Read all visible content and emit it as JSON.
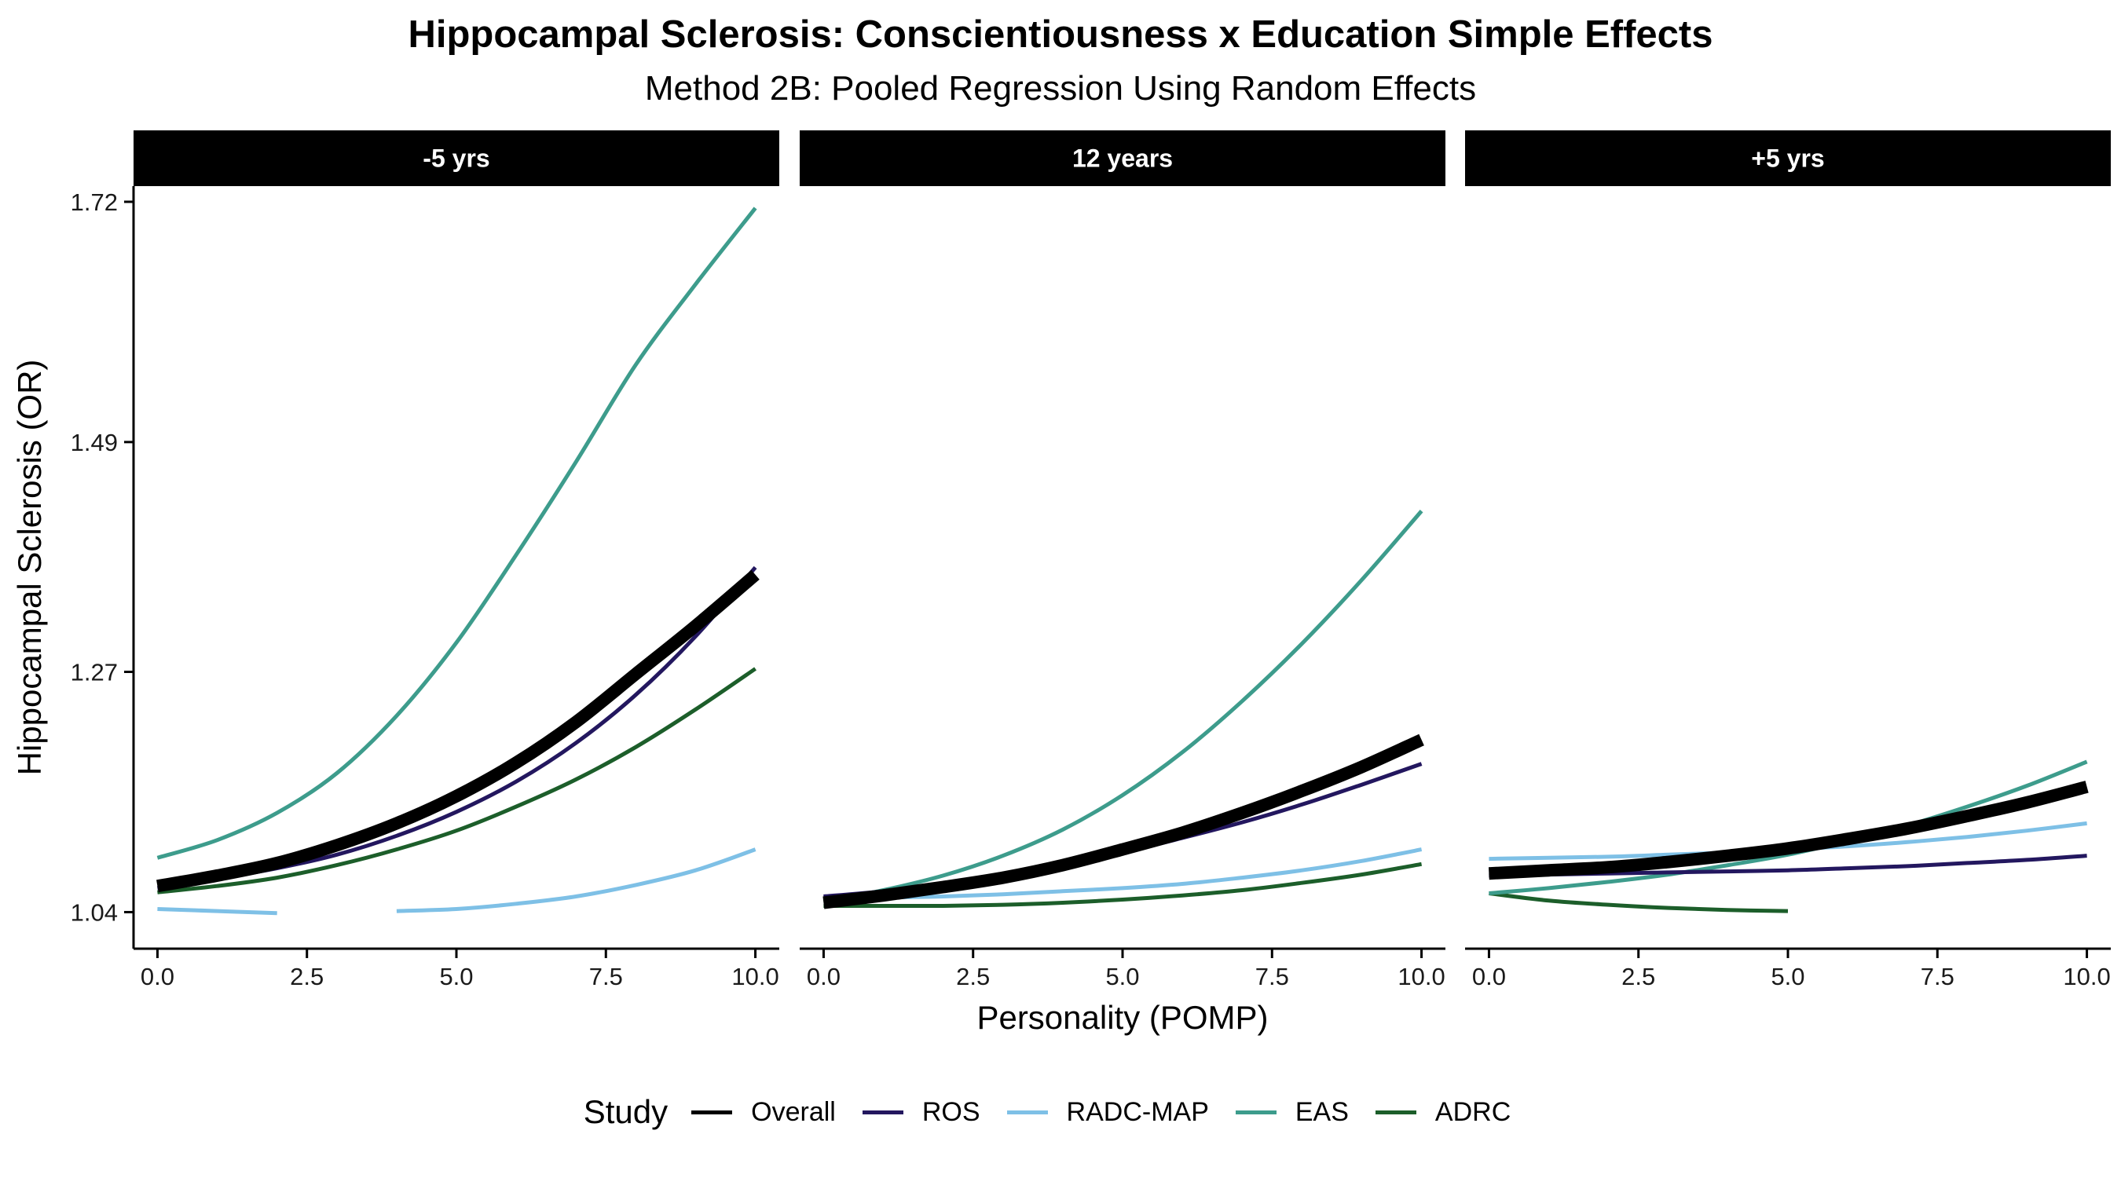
{
  "chart_data": {
    "type": "line",
    "title": "Hippocampal Sclerosis: Conscientiousness x Education Simple Effects",
    "subtitle": "Method 2B: Pooled Regression Using Random Effects",
    "xlabel": "Personality (POMP)",
    "ylabel": "Hippocampal Sclerosis (OR)",
    "xlim": [
      -0.4,
      10.4
    ],
    "ylim": [
      1.005,
      1.735
    ],
    "x_ticks": [
      0,
      2.5,
      5,
      7.5,
      10
    ],
    "x_tick_labels": [
      "0.0",
      "2.5",
      "5.0",
      "7.5",
      "10.0"
    ],
    "y_ticks": [
      1.04,
      1.27,
      1.49,
      1.72
    ],
    "y_tick_labels": [
      "1.04",
      "1.27",
      "1.49",
      "1.72"
    ],
    "legend_title": "Study",
    "legend_position": "bottom",
    "grid": false,
    "x": [
      0,
      1,
      2,
      3,
      4,
      5,
      6,
      7,
      8,
      9,
      10
    ],
    "series_styles": [
      {
        "name": "Overall",
        "color": "#000000",
        "width": 16
      },
      {
        "name": "ROS",
        "color": "#23175f",
        "width": 5
      },
      {
        "name": "RADC-MAP",
        "color": "#7ec0e6",
        "width": 5
      },
      {
        "name": "EAS",
        "color": "#3d9c8c",
        "width": 5
      },
      {
        "name": "ADRC",
        "color": "#1c5e2a",
        "width": 5
      }
    ],
    "panels": [
      {
        "label": "-5 yrs",
        "series": [
          {
            "name": "Overall",
            "values": [
              1.065,
              1.075,
              1.087,
              1.104,
              1.125,
              1.151,
              1.183,
              1.222,
              1.268,
              1.314,
              1.363
            ]
          },
          {
            "name": "ROS",
            "values": [
              1.063,
              1.072,
              1.082,
              1.095,
              1.113,
              1.136,
              1.165,
              1.202,
              1.248,
              1.304,
              1.37
            ]
          },
          {
            "name": "RADC-MAP",
            "values": [
              1.043,
              1.041,
              1.039,
              null,
              1.041,
              1.043,
              1.048,
              1.055,
              1.066,
              1.08,
              1.1
            ]
          },
          {
            "name": "EAS",
            "values": [
              1.092,
              1.109,
              1.135,
              1.173,
              1.228,
              1.298,
              1.382,
              1.471,
              1.564,
              1.641,
              1.714
            ]
          },
          {
            "name": "ADRC",
            "values": [
              1.059,
              1.065,
              1.073,
              1.085,
              1.1,
              1.118,
              1.141,
              1.167,
              1.198,
              1.234,
              1.273
            ]
          }
        ]
      },
      {
        "label": "12 years",
        "series": [
          {
            "name": "Overall",
            "values": [
              1.049,
              1.056,
              1.064,
              1.073,
              1.085,
              1.1,
              1.116,
              1.135,
              1.156,
              1.179,
              1.205
            ]
          },
          {
            "name": "ROS",
            "values": [
              1.055,
              1.06,
              1.067,
              1.075,
              1.085,
              1.097,
              1.111,
              1.126,
              1.143,
              1.162,
              1.182
            ]
          },
          {
            "name": "RADC-MAP",
            "values": [
              1.053,
              1.054,
              1.055,
              1.057,
              1.06,
              1.063,
              1.067,
              1.073,
              1.08,
              1.089,
              1.1
            ]
          },
          {
            "name": "EAS",
            "values": [
              1.05,
              1.061,
              1.075,
              1.094,
              1.119,
              1.152,
              1.193,
              1.242,
              1.297,
              1.358,
              1.424
            ]
          },
          {
            "name": "ADRC",
            "values": [
              1.046,
              1.046,
              1.046,
              1.047,
              1.049,
              1.052,
              1.056,
              1.061,
              1.068,
              1.076,
              1.086
            ]
          }
        ]
      },
      {
        "label": "+5 yrs",
        "series": [
          {
            "name": "Overall",
            "values": [
              1.077,
              1.08,
              1.083,
              1.088,
              1.094,
              1.101,
              1.11,
              1.12,
              1.132,
              1.145,
              1.16
            ]
          },
          {
            "name": "ROS",
            "values": [
              1.075,
              1.076,
              1.077,
              1.078,
              1.079,
              1.08,
              1.082,
              1.084,
              1.087,
              1.09,
              1.094
            ]
          },
          {
            "name": "RADC-MAP",
            "values": [
              1.091,
              1.092,
              1.093,
              1.095,
              1.097,
              1.1,
              1.103,
              1.107,
              1.112,
              1.118,
              1.125
            ]
          },
          {
            "name": "EAS",
            "values": [
              1.058,
              1.063,
              1.069,
              1.076,
              1.085,
              1.095,
              1.108,
              1.123,
              1.141,
              1.161,
              1.184
            ]
          },
          {
            "name": "ADRC",
            "values": [
              1.058,
              1.051,
              1.047,
              1.044,
              1.042,
              1.041,
              null,
              null,
              null,
              null,
              null
            ]
          }
        ]
      }
    ]
  }
}
